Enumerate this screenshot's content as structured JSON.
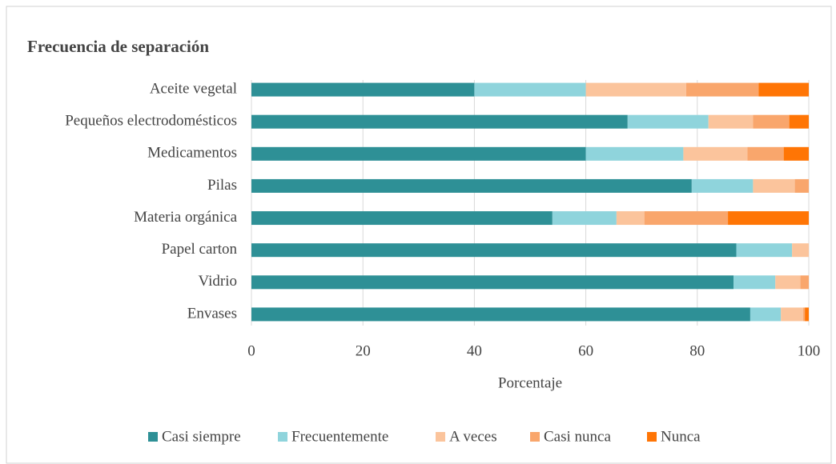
{
  "chart_data": {
    "type": "stacked-bar-horizontal",
    "title": "Frecuencia de separación",
    "categories": [
      "Aceite vegetal",
      "Pequeños electrodomésticos",
      "Medicamentos",
      "Pilas",
      "Materia orgánica",
      "Papel carton",
      "Vidrio",
      "Envases"
    ],
    "series": [
      {
        "name": "Casi siempre",
        "color": "#2e9096",
        "values": [
          40,
          67.5,
          60,
          79,
          54,
          87,
          86.5,
          89.5
        ]
      },
      {
        "name": "Frecuentemente",
        "color": "#8fd4dc",
        "values": [
          20,
          14.5,
          17.5,
          11,
          11.5,
          10,
          7.5,
          5.5
        ]
      },
      {
        "name": "A veces",
        "color": "#fbc49c",
        "values": [
          18,
          8,
          11.5,
          7.5,
          5,
          3,
          4.5,
          4
        ]
      },
      {
        "name": "Casi nunca",
        "color": "#f9a66c",
        "values": [
          13,
          6.5,
          6.5,
          2.5,
          15,
          0,
          1.5,
          0.3
        ]
      },
      {
        "name": "Nunca",
        "color": "#ff7505",
        "values": [
          9,
          3.5,
          4.5,
          0,
          14.5,
          0,
          0,
          0.7
        ]
      }
    ],
    "xlabel": "Porcentaje",
    "xlim": [
      0,
      100
    ],
    "xticks": [
      0,
      20,
      40,
      60,
      80,
      100
    ],
    "grid": true,
    "legend": "bottom"
  }
}
